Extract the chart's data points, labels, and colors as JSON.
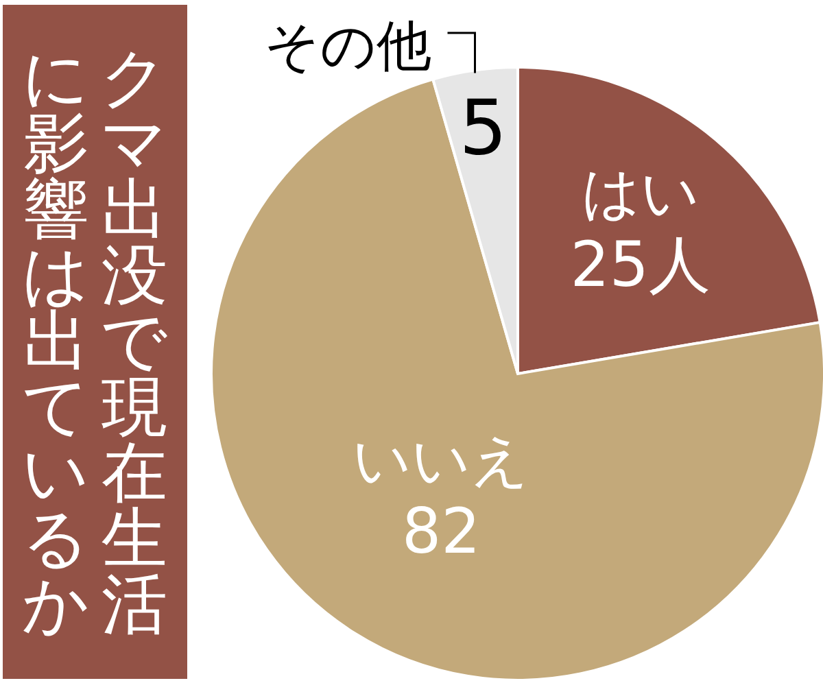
{
  "chart_data": {
    "type": "pie",
    "title": "クマ出没で現在生活に影響は出ているか",
    "categories": [
      "はい",
      "いいえ",
      "その他"
    ],
    "values": [
      25,
      82,
      5
    ],
    "value_labels": [
      "25人",
      "82",
      "5"
    ],
    "colors": [
      "#935246",
      "#c3a97a",
      "#e6e6e6"
    ]
  }
}
